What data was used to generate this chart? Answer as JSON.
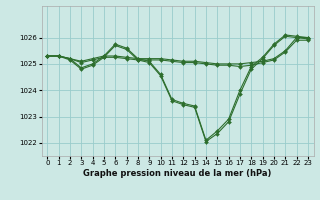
{
  "title": "Graphe pression niveau de la mer (hPa)",
  "bg_color": "#cce8e4",
  "grid_color": "#99cccc",
  "line_color": "#2d6e2d",
  "xlim": [
    -0.5,
    23.5
  ],
  "ylim": [
    1021.5,
    1027.2
  ],
  "yticks": [
    1022,
    1023,
    1024,
    1025,
    1026
  ],
  "xticks": [
    0,
    1,
    2,
    3,
    4,
    5,
    6,
    7,
    8,
    9,
    10,
    11,
    12,
    13,
    14,
    15,
    16,
    17,
    18,
    19,
    20,
    21,
    22,
    23
  ],
  "xlabel_fontsize": 6.0,
  "tick_fontsize": 5.0,
  "series": [
    {
      "x": [
        0,
        1,
        2,
        3,
        4,
        5,
        6,
        7,
        8,
        9,
        10,
        11,
        12,
        13,
        14,
        15,
        16,
        17,
        18,
        19,
        20,
        21,
        22,
        23
      ],
      "y": [
        1025.3,
        1025.3,
        1025.2,
        1025.1,
        1025.2,
        1025.3,
        1025.3,
        1025.25,
        1025.2,
        1025.2,
        1025.2,
        1025.15,
        1025.1,
        1025.1,
        1025.05,
        1025.0,
        1025.0,
        1025.0,
        1025.05,
        1025.1,
        1025.2,
        1025.5,
        1026.0,
        1026.0
      ]
    },
    {
      "x": [
        0,
        1,
        2,
        3,
        4,
        5,
        6,
        7,
        8,
        9,
        10,
        11,
        12,
        13,
        14,
        15,
        16,
        17,
        18,
        19,
        20,
        21,
        22,
        23
      ],
      "y": [
        1025.3,
        1025.3,
        1025.2,
        1025.05,
        1025.15,
        1025.25,
        1025.25,
        1025.2,
        1025.15,
        1025.15,
        1025.15,
        1025.1,
        1025.05,
        1025.05,
        1025.0,
        1024.95,
        1024.95,
        1024.9,
        1024.95,
        1025.05,
        1025.15,
        1025.45,
        1025.9,
        1025.9
      ]
    },
    {
      "x": [
        0,
        1,
        2,
        3,
        4,
        5,
        6,
        7,
        8,
        9,
        10,
        11,
        12,
        13,
        14,
        15,
        16,
        17,
        18,
        19,
        20,
        21,
        22,
        23
      ],
      "y": [
        1025.3,
        1025.3,
        1025.2,
        1024.85,
        1025.0,
        1025.3,
        1025.75,
        1025.6,
        1025.2,
        1025.1,
        1024.6,
        1023.65,
        1023.5,
        1023.4,
        1022.1,
        1022.45,
        1022.9,
        1024.0,
        1024.9,
        1025.25,
        1025.75,
        1026.1,
        1026.05,
        1026.0
      ]
    },
    {
      "x": [
        0,
        1,
        2,
        3,
        4,
        5,
        6,
        7,
        8,
        9,
        10,
        11,
        12,
        13,
        14,
        15,
        16,
        17,
        18,
        19,
        20,
        21,
        22,
        23
      ],
      "y": [
        1025.3,
        1025.3,
        1025.15,
        1024.8,
        1024.95,
        1025.25,
        1025.7,
        1025.55,
        1025.15,
        1025.05,
        1024.55,
        1023.6,
        1023.45,
        1023.35,
        1022.05,
        1022.35,
        1022.8,
        1023.85,
        1024.8,
        1025.2,
        1025.7,
        1026.05,
        1026.0,
        1025.95
      ]
    }
  ]
}
